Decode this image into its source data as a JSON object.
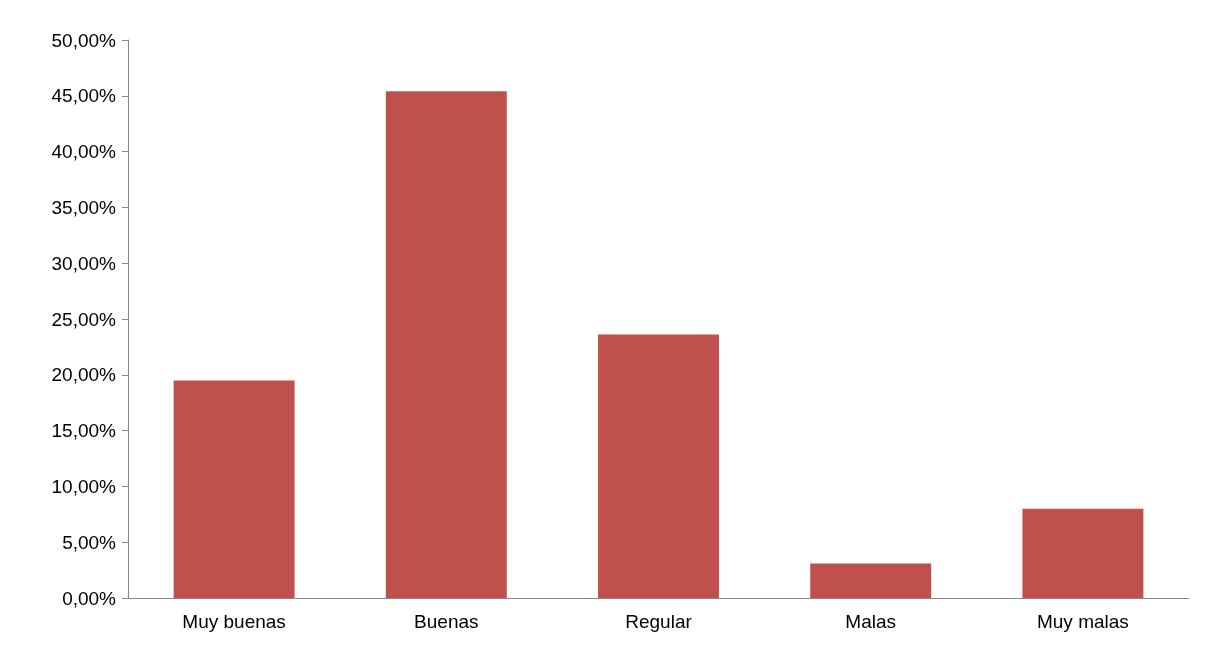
{
  "chart_data": {
    "type": "bar",
    "categories": [
      "Muy buenas",
      "Buenas",
      "Regular",
      "Malas",
      "Muy malas"
    ],
    "values": [
      19.5,
      45.4,
      23.6,
      3.1,
      8.0
    ],
    "color": "#c0504d",
    "ylim": [
      0,
      50
    ],
    "yticks": [
      {
        "value": 0,
        "label": "0,00%"
      },
      {
        "value": 5,
        "label": "5,00%"
      },
      {
        "value": 10,
        "label": "10,00%"
      },
      {
        "value": 15,
        "label": "15,00%"
      },
      {
        "value": 20,
        "label": "20,00%"
      },
      {
        "value": 25,
        "label": "25,00%"
      },
      {
        "value": 30,
        "label": "30,00%"
      },
      {
        "value": 35,
        "label": "35,00%"
      },
      {
        "value": 40,
        "label": "40,00%"
      },
      {
        "value": 45,
        "label": "45,00%"
      },
      {
        "value": 50,
        "label": "50,00%"
      }
    ],
    "grid": false
  }
}
